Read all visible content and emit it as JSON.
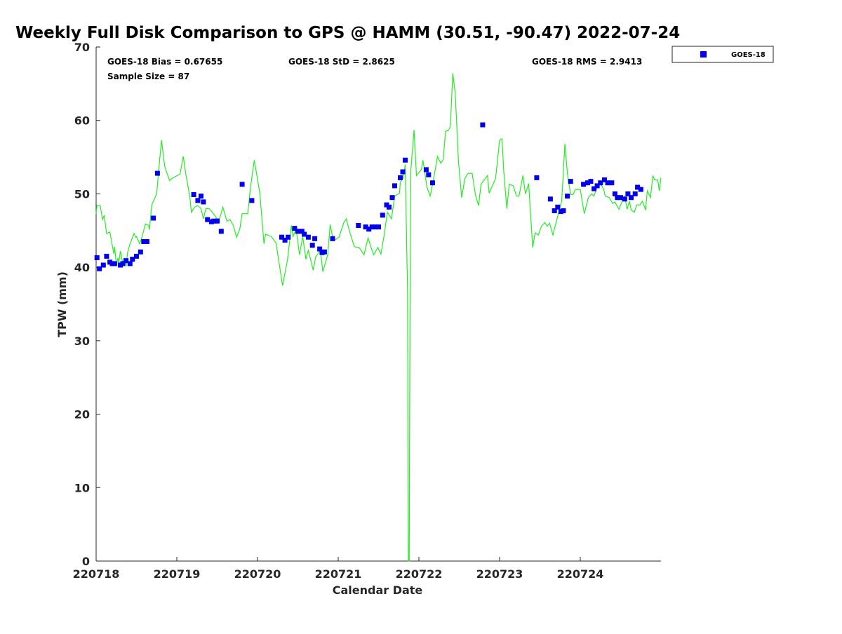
{
  "chart_data": {
    "type": "scatter+line",
    "title": "Weekly Full Disk Comparison to GPS @ HAMM (30.51, -90.47) 2022-07-24",
    "xlabel": "Calendar Date",
    "ylabel": "TPW (mm)",
    "xlim": [
      0,
      7
    ],
    "ylim": [
      0,
      70
    ],
    "x_unit": "days since 220718",
    "xticks": [
      0,
      1,
      2,
      3,
      4,
      5,
      6
    ],
    "xtick_labels": [
      "220718",
      "220719",
      "220720",
      "220721",
      "220722",
      "220723",
      "220724"
    ],
    "yticks": [
      0,
      10,
      20,
      30,
      40,
      50,
      60,
      70
    ],
    "ytick_labels": [
      "0",
      "10",
      "20",
      "30",
      "40",
      "50",
      "60",
      "70"
    ],
    "grid": false,
    "legend": {
      "placement": "outside-top-right",
      "entries": [
        "GOES-18"
      ]
    },
    "stats": {
      "bias": "GOES-18 Bias = 0.67655",
      "std": "GOES-18 StD = 2.8625",
      "rms": "GOES-18 RMS = 2.9413",
      "sample": "Sample Size = 87"
    },
    "colors": {
      "goes": "#0000ee",
      "gps": "#22ee22"
    },
    "series": [
      {
        "name": "GOES-18",
        "kind": "scatter",
        "points": [
          [
            0.01,
            41.3
          ],
          [
            0.04,
            39.8
          ],
          [
            0.09,
            40.3
          ],
          [
            0.13,
            41.5
          ],
          [
            0.17,
            40.7
          ],
          [
            0.2,
            40.5
          ],
          [
            0.23,
            40.5
          ],
          [
            0.3,
            40.3
          ],
          [
            0.33,
            40.5
          ],
          [
            0.37,
            40.9
          ],
          [
            0.42,
            40.5
          ],
          [
            0.45,
            41.1
          ],
          [
            0.5,
            41.5
          ],
          [
            0.55,
            42.1
          ],
          [
            0.59,
            43.5
          ],
          [
            0.63,
            43.5
          ],
          [
            0.71,
            46.7
          ],
          [
            0.76,
            52.8
          ],
          [
            1.21,
            49.9
          ],
          [
            1.26,
            49.1
          ],
          [
            1.3,
            49.7
          ],
          [
            1.33,
            48.9
          ],
          [
            1.38,
            46.5
          ],
          [
            1.43,
            46.2
          ],
          [
            1.46,
            46.3
          ],
          [
            1.5,
            46.3
          ],
          [
            1.55,
            44.9
          ],
          [
            1.81,
            51.3
          ],
          [
            1.93,
            49.1
          ],
          [
            2.3,
            44.1
          ],
          [
            2.34,
            43.7
          ],
          [
            2.38,
            44.1
          ],
          [
            2.46,
            45.3
          ],
          [
            2.5,
            44.9
          ],
          [
            2.55,
            44.9
          ],
          [
            2.58,
            44.5
          ],
          [
            2.63,
            44.1
          ],
          [
            2.68,
            43.0
          ],
          [
            2.71,
            43.9
          ],
          [
            2.77,
            42.5
          ],
          [
            2.8,
            42.0
          ],
          [
            2.83,
            42.1
          ],
          [
            2.93,
            43.9
          ],
          [
            3.25,
            45.7
          ],
          [
            3.34,
            45.5
          ],
          [
            3.38,
            45.2
          ],
          [
            3.42,
            45.5
          ],
          [
            3.46,
            45.5
          ],
          [
            3.5,
            45.5
          ],
          [
            3.55,
            47.1
          ],
          [
            3.6,
            48.5
          ],
          [
            3.63,
            48.2
          ],
          [
            3.67,
            49.5
          ],
          [
            3.7,
            51.1
          ],
          [
            3.77,
            52.2
          ],
          [
            3.8,
            53.0
          ],
          [
            3.83,
            54.6
          ],
          [
            4.09,
            53.3
          ],
          [
            4.12,
            52.6
          ],
          [
            4.17,
            51.5
          ],
          [
            4.79,
            59.4
          ],
          [
            5.46,
            52.2
          ],
          [
            5.63,
            49.3
          ],
          [
            5.68,
            47.7
          ],
          [
            5.72,
            48.2
          ],
          [
            5.76,
            47.6
          ],
          [
            5.79,
            47.7
          ],
          [
            5.84,
            49.7
          ],
          [
            5.88,
            51.7
          ],
          [
            6.04,
            51.3
          ],
          [
            6.09,
            51.5
          ],
          [
            6.13,
            51.7
          ],
          [
            6.17,
            50.7
          ],
          [
            6.21,
            51.1
          ],
          [
            6.25,
            51.5
          ],
          [
            6.3,
            51.9
          ],
          [
            6.34,
            51.5
          ],
          [
            6.39,
            51.5
          ],
          [
            6.43,
            50.0
          ],
          [
            6.46,
            49.5
          ],
          [
            6.5,
            49.5
          ],
          [
            6.55,
            49.3
          ],
          [
            6.59,
            50.0
          ],
          [
            6.63,
            49.5
          ],
          [
            6.68,
            50.0
          ],
          [
            6.71,
            50.9
          ],
          [
            6.75,
            50.6
          ]
        ]
      },
      {
        "name": "GPS",
        "kind": "line",
        "points": [
          [
            0.0,
            47.3
          ],
          [
            0.01,
            48.4
          ],
          [
            0.05,
            48.4
          ],
          [
            0.08,
            46.5
          ],
          [
            0.1,
            47.1
          ],
          [
            0.13,
            44.6
          ],
          [
            0.17,
            44.8
          ],
          [
            0.18,
            44.2
          ],
          [
            0.22,
            41.8
          ],
          [
            0.23,
            42.8
          ],
          [
            0.25,
            40.3
          ],
          [
            0.27,
            41.3
          ],
          [
            0.28,
            40.4
          ],
          [
            0.3,
            42.2
          ],
          [
            0.33,
            40.6
          ],
          [
            0.35,
            41.3
          ],
          [
            0.37,
            40.1
          ],
          [
            0.39,
            42.0
          ],
          [
            0.42,
            43.2
          ],
          [
            0.47,
            44.6
          ],
          [
            0.49,
            44.1
          ],
          [
            0.5,
            44.2
          ],
          [
            0.54,
            43.2
          ],
          [
            0.57,
            44.2
          ],
          [
            0.61,
            45.9
          ],
          [
            0.65,
            45.7
          ],
          [
            0.66,
            45.1
          ],
          [
            0.69,
            48.5
          ],
          [
            0.75,
            50.0
          ],
          [
            0.78,
            53.8
          ],
          [
            0.81,
            57.3
          ],
          [
            0.85,
            53.7
          ],
          [
            0.91,
            51.8
          ],
          [
            0.94,
            52.1
          ],
          [
            1.04,
            52.7
          ],
          [
            1.08,
            55.1
          ],
          [
            1.11,
            52.8
          ],
          [
            1.16,
            49.7
          ],
          [
            1.18,
            47.5
          ],
          [
            1.22,
            48.2
          ],
          [
            1.26,
            48.4
          ],
          [
            1.3,
            48.0
          ],
          [
            1.33,
            46.6
          ],
          [
            1.36,
            48.0
          ],
          [
            1.4,
            48.0
          ],
          [
            1.44,
            47.5
          ],
          [
            1.5,
            46.6
          ],
          [
            1.53,
            46.6
          ],
          [
            1.57,
            48.2
          ],
          [
            1.62,
            46.3
          ],
          [
            1.66,
            46.5
          ],
          [
            1.7,
            45.7
          ],
          [
            1.74,
            44.1
          ],
          [
            1.78,
            45.2
          ],
          [
            1.81,
            47.3
          ],
          [
            1.88,
            47.3
          ],
          [
            1.91,
            50.6
          ],
          [
            1.96,
            54.6
          ],
          [
            2.03,
            50.0
          ],
          [
            2.08,
            43.2
          ],
          [
            2.1,
            44.5
          ],
          [
            2.17,
            44.2
          ],
          [
            2.23,
            43.3
          ],
          [
            2.31,
            37.5
          ],
          [
            2.37,
            40.9
          ],
          [
            2.42,
            45.7
          ],
          [
            2.44,
            44.2
          ],
          [
            2.48,
            45.2
          ],
          [
            2.52,
            41.7
          ],
          [
            2.56,
            44.2
          ],
          [
            2.6,
            41.1
          ],
          [
            2.63,
            42.3
          ],
          [
            2.69,
            39.6
          ],
          [
            2.72,
            41.4
          ],
          [
            2.78,
            42.3
          ],
          [
            2.81,
            39.4
          ],
          [
            2.87,
            41.7
          ],
          [
            2.9,
            45.8
          ],
          [
            2.94,
            43.6
          ],
          [
            3.01,
            44.1
          ],
          [
            3.07,
            46.1
          ],
          [
            3.1,
            46.6
          ],
          [
            3.14,
            44.9
          ],
          [
            3.2,
            42.8
          ],
          [
            3.26,
            42.7
          ],
          [
            3.32,
            41.7
          ],
          [
            3.37,
            44.0
          ],
          [
            3.42,
            42.3
          ],
          [
            3.44,
            41.7
          ],
          [
            3.49,
            42.7
          ],
          [
            3.53,
            41.8
          ],
          [
            3.57,
            44.4
          ],
          [
            3.61,
            47.5
          ],
          [
            3.66,
            46.6
          ],
          [
            3.7,
            49.7
          ],
          [
            3.76,
            50.1
          ],
          [
            3.77,
            51.6
          ],
          [
            3.81,
            52.2
          ],
          [
            3.83,
            54.0
          ],
          [
            3.86,
            36.3
          ],
          [
            3.87,
            0
          ],
          [
            3.88,
            0
          ],
          [
            3.89,
            36.3
          ],
          [
            3.9,
            53.2
          ],
          [
            3.94,
            58.7
          ],
          [
            3.97,
            52.5
          ],
          [
            4.03,
            53.3
          ],
          [
            4.05,
            54.6
          ],
          [
            4.1,
            50.9
          ],
          [
            4.14,
            49.7
          ],
          [
            4.18,
            51.9
          ],
          [
            4.23,
            55.1
          ],
          [
            4.27,
            54.2
          ],
          [
            4.3,
            54.6
          ],
          [
            4.33,
            58.5
          ],
          [
            4.37,
            58.7
          ],
          [
            4.39,
            59.2
          ],
          [
            4.42,
            66.4
          ],
          [
            4.45,
            63.7
          ],
          [
            4.49,
            54.4
          ],
          [
            4.53,
            49.5
          ],
          [
            4.57,
            52.1
          ],
          [
            4.61,
            52.8
          ],
          [
            4.66,
            52.8
          ],
          [
            4.7,
            49.9
          ],
          [
            4.74,
            48.4
          ],
          [
            4.77,
            51.3
          ],
          [
            4.85,
            52.5
          ],
          [
            4.87,
            50.1
          ],
          [
            4.95,
            52.1
          ],
          [
            5.0,
            57.3
          ],
          [
            5.03,
            57.5
          ],
          [
            5.05,
            53.2
          ],
          [
            5.09,
            48.0
          ],
          [
            5.12,
            51.3
          ],
          [
            5.17,
            51.1
          ],
          [
            5.21,
            49.7
          ],
          [
            5.24,
            49.7
          ],
          [
            5.29,
            52.5
          ],
          [
            5.32,
            50.0
          ],
          [
            5.36,
            51.4
          ],
          [
            5.41,
            42.7
          ],
          [
            5.44,
            44.7
          ],
          [
            5.48,
            44.4
          ],
          [
            5.52,
            45.6
          ],
          [
            5.56,
            46.1
          ],
          [
            5.59,
            45.6
          ],
          [
            5.62,
            46.0
          ],
          [
            5.66,
            44.4
          ],
          [
            5.7,
            46.1
          ],
          [
            5.77,
            49.0
          ],
          [
            5.81,
            56.8
          ],
          [
            5.84,
            52.8
          ],
          [
            5.88,
            49.9
          ],
          [
            5.91,
            49.9
          ],
          [
            5.94,
            50.6
          ],
          [
            6.0,
            50.6
          ],
          [
            6.05,
            47.3
          ],
          [
            6.1,
            49.5
          ],
          [
            6.14,
            50.0
          ],
          [
            6.17,
            49.7
          ],
          [
            6.22,
            51.4
          ],
          [
            6.24,
            51.6
          ],
          [
            6.29,
            50.6
          ],
          [
            6.31,
            49.7
          ],
          [
            6.36,
            49.5
          ],
          [
            6.4,
            48.7
          ],
          [
            6.43,
            48.9
          ],
          [
            6.48,
            47.9
          ],
          [
            6.52,
            49.0
          ],
          [
            6.55,
            49.7
          ],
          [
            6.58,
            47.9
          ],
          [
            6.61,
            49.0
          ],
          [
            6.63,
            47.8
          ],
          [
            6.67,
            47.5
          ],
          [
            6.7,
            48.5
          ],
          [
            6.74,
            48.5
          ],
          [
            6.77,
            49.0
          ],
          [
            6.81,
            47.8
          ],
          [
            6.83,
            50.4
          ],
          [
            6.87,
            49.5
          ],
          [
            6.9,
            52.5
          ],
          [
            6.92,
            51.9
          ],
          [
            6.96,
            51.9
          ],
          [
            6.98,
            50.4
          ],
          [
            7.0,
            52.2
          ]
        ]
      }
    ]
  }
}
